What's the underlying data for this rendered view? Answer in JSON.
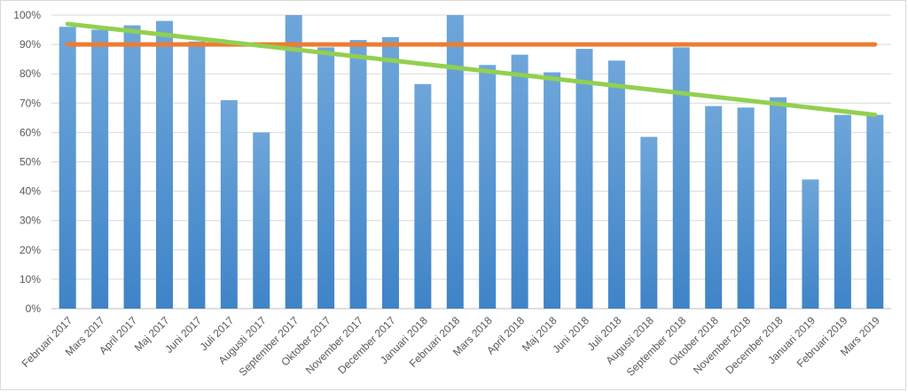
{
  "chart_data": {
    "type": "bar",
    "categories": [
      "Februari 2017",
      "Mars 2017",
      "April 2017",
      "Maj 2017",
      "Juni 2017",
      "Juli 2017",
      "Augusti 2017",
      "September 2017",
      "Oktober 2017",
      "November 2017",
      "December 2017",
      "Januari 2018",
      "Februari 2018",
      "Mars 2018",
      "April 2018",
      "Maj 2018",
      "Juni 2018",
      "Juli 2018",
      "Augusti 2018",
      "September 2018",
      "Oktober 2018",
      "November 2018",
      "December 2018",
      "Januari 2019",
      "Februari 2019",
      "Mars 2019"
    ],
    "values": [
      96,
      95,
      96.5,
      98,
      91,
      71,
      60,
      100,
      89,
      91.5,
      92.5,
      76.5,
      100,
      83,
      86.5,
      80.5,
      88.5,
      84.5,
      58.5,
      89,
      69,
      68.5,
      72,
      44,
      66,
      66
    ],
    "ylim": [
      0,
      100
    ],
    "yticks": [
      "0%",
      "10%",
      "20%",
      "30%",
      "40%",
      "50%",
      "60%",
      "70%",
      "80%",
      "90%",
      "100%"
    ],
    "reference_line": {
      "value": 90,
      "color": "#ed7d31"
    },
    "trendline": {
      "start": 97,
      "end": 66,
      "color": "#92d050"
    },
    "bar_color": "#5b9bd5",
    "grid": true
  }
}
